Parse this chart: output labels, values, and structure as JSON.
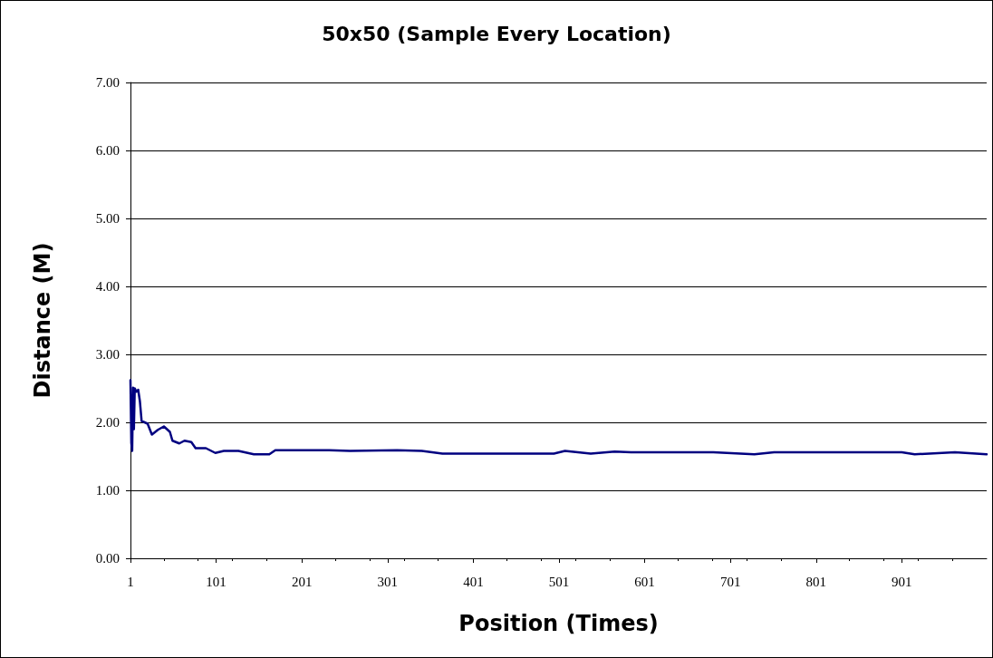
{
  "chart_data": {
    "type": "line",
    "title": "50x50 (Sample Every Location)",
    "xlabel": "Position (Times)",
    "ylabel": "Distance (M)",
    "series": [
      {
        "color": "#000080",
        "x": [
          1,
          2,
          3,
          4,
          5,
          6,
          8,
          10,
          12,
          14,
          21,
          26,
          33,
          40,
          47,
          50,
          58,
          64,
          72,
          77,
          89,
          100,
          110,
          127,
          145,
          163,
          170,
          190,
          233,
          257,
          312,
          341,
          365,
          495,
          508,
          538,
          566,
          585,
          681,
          729,
          752,
          901,
          916,
          963,
          1000
        ],
        "values": [
          2.62,
          1.7,
          1.58,
          2.51,
          1.9,
          2.5,
          2.45,
          2.48,
          2.31,
          2.02,
          1.98,
          1.82,
          1.89,
          1.94,
          1.86,
          1.73,
          1.69,
          1.73,
          1.71,
          1.62,
          1.62,
          1.55,
          1.58,
          1.58,
          1.53,
          1.53,
          1.59,
          1.59,
          1.59,
          1.58,
          1.59,
          1.58,
          1.54,
          1.54,
          1.58,
          1.54,
          1.57,
          1.56,
          1.56,
          1.53,
          1.56,
          1.56,
          1.53,
          1.56,
          1.53
        ]
      }
    ],
    "xlim": [
      1,
      1000
    ],
    "xticks": [
      1,
      101,
      201,
      301,
      401,
      501,
      601,
      701,
      801,
      901
    ],
    "ylim": [
      0,
      7
    ],
    "yticks": [
      {
        "value": 0,
        "label": "0.00"
      },
      {
        "value": 1,
        "label": "1.00"
      },
      {
        "value": 2,
        "label": "2.00"
      },
      {
        "value": 3,
        "label": "3.00"
      },
      {
        "value": 4,
        "label": "4.00"
      },
      {
        "value": 5,
        "label": "5.00"
      },
      {
        "value": 6,
        "label": "6.00"
      },
      {
        "value": 7,
        "label": "7.00"
      }
    ],
    "grid": "y",
    "marker": "none",
    "line_style": "solid"
  }
}
